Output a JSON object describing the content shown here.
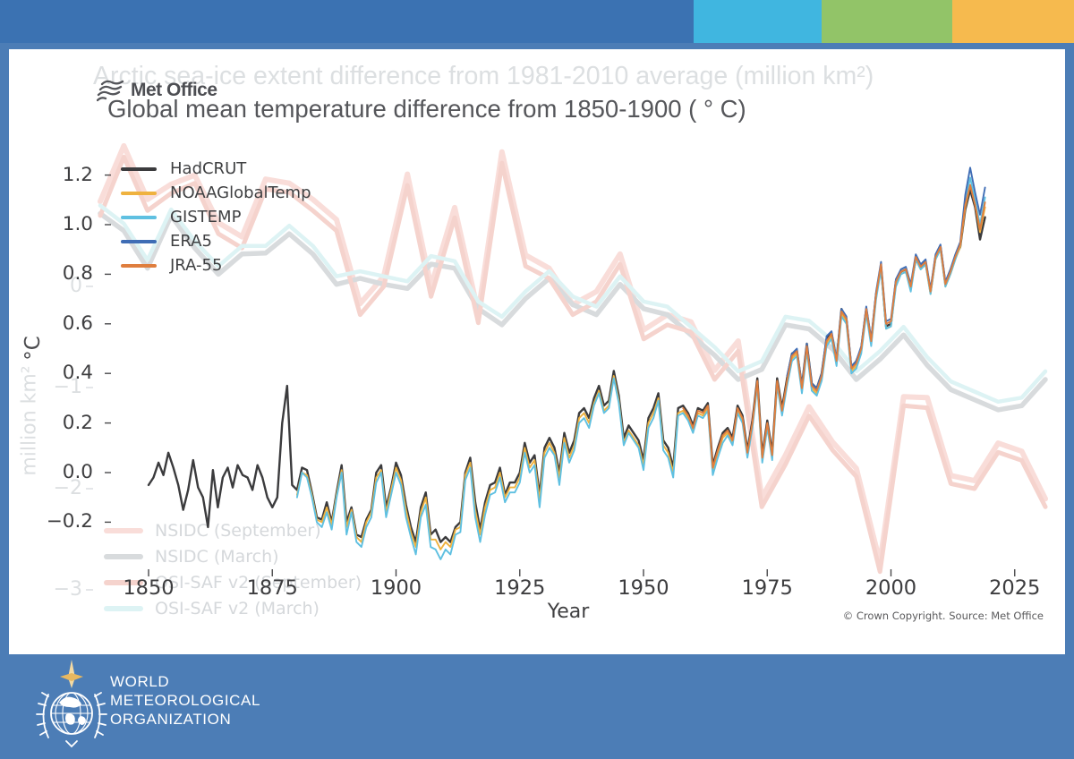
{
  "banner": {
    "segments": [
      "#3b72b2",
      "#40b6e0",
      "#92c468",
      "#f6ba4e"
    ]
  },
  "logo": {
    "met_office_label": "Met Office"
  },
  "titles": {
    "ghost": "Arctic sea-ice extent difference from 1981-2010 average (million km²)",
    "main": "Global mean temperature difference from 1850-1900 ( ° C)"
  },
  "axes": {
    "x_label": "Year",
    "x_ticks": [
      1850,
      1875,
      1900,
      1925,
      1950,
      1975,
      2000,
      2025
    ],
    "y_label": "°C",
    "y_ticks": [
      "1.2",
      "1.0",
      "0.8",
      "0.6",
      "0.4",
      "0.2",
      "0.0",
      "−0.2"
    ],
    "y_tick_values": [
      1.2,
      1.0,
      0.8,
      0.6,
      0.4,
      0.2,
      0.0,
      -0.2
    ],
    "ghost_y_label": "million km²",
    "ghost_y_ticks": [
      "0",
      "−1",
      "−2",
      "−3"
    ],
    "ghost_y_tick_values": [
      0,
      -1,
      -2,
      -3
    ]
  },
  "copyright": "© Crown Copyright. Source: Met Office",
  "footer": {
    "lines": [
      "WORLD",
      "METEOROLOGICAL",
      "ORGANIZATION"
    ]
  },
  "chart_data": {
    "type": "line",
    "title": "Global mean temperature difference from 1850-1900 ( ° C)",
    "ghost_title": "Arctic sea-ice extent difference from 1981-2010 average (million km²)",
    "xlabel": "Year",
    "ylabel": "°C",
    "x_range": [
      1850,
      2025
    ],
    "y_range": [
      -0.2,
      1.2
    ],
    "ghost_ylabel": "million km²",
    "ghost_y_range": [
      -3,
      1
    ],
    "grid": false,
    "legend_position": "upper left",
    "series": [
      {
        "name": "HadCRUT",
        "color": "#3b3b3d",
        "start": 1850,
        "values": [
          -0.05,
          -0.02,
          0.04,
          -0.01,
          0.08,
          0.02,
          -0.05,
          -0.15,
          -0.07,
          0.05,
          -0.06,
          -0.1,
          -0.22,
          0.01,
          -0.14,
          -0.02,
          0.02,
          -0.06,
          0.03,
          -0.01,
          -0.02,
          -0.07,
          0.03,
          -0.02,
          -0.1,
          -0.14,
          -0.1,
          0.2,
          0.35,
          -0.05,
          -0.07,
          0.02,
          0.01,
          -0.08,
          -0.18,
          -0.19,
          -0.12,
          -0.2,
          -0.08,
          0.03,
          -0.2,
          -0.14,
          -0.25,
          -0.26,
          -0.19,
          -0.15,
          0.0,
          0.03,
          -0.14,
          -0.06,
          0.04,
          -0.01,
          -0.13,
          -0.22,
          -0.28,
          -0.14,
          -0.08,
          -0.25,
          -0.23,
          -0.28,
          -0.26,
          -0.28,
          -0.22,
          -0.2,
          0.0,
          0.06,
          -0.12,
          -0.23,
          -0.12,
          -0.05,
          -0.04,
          0.02,
          -0.09,
          -0.04,
          -0.04,
          0.0,
          0.12,
          0.04,
          0.07,
          -0.09,
          0.1,
          0.14,
          0.1,
          0.0,
          0.16,
          0.08,
          0.13,
          0.24,
          0.26,
          0.22,
          0.3,
          0.35,
          0.27,
          0.29,
          0.41,
          0.31,
          0.14,
          0.19,
          0.16,
          0.13,
          0.05,
          0.22,
          0.26,
          0.32,
          0.13,
          0.1,
          0.02,
          0.26,
          0.27,
          0.24,
          0.19,
          0.26,
          0.25,
          0.28,
          0.03,
          0.1,
          0.16,
          0.18,
          0.14,
          0.27,
          0.23,
          0.09,
          0.21,
          0.38,
          0.07,
          0.21,
          0.08,
          0.38,
          0.26,
          0.38,
          0.48,
          0.49,
          0.35,
          0.52,
          0.36,
          0.34,
          0.4,
          0.54,
          0.56,
          0.45,
          0.66,
          0.62,
          0.42,
          0.45,
          0.5,
          0.66,
          0.53,
          0.72,
          0.83,
          0.59,
          0.6,
          0.77,
          0.81,
          0.82,
          0.75,
          0.86,
          0.83,
          0.85,
          0.73,
          0.87,
          0.91,
          0.76,
          0.81,
          0.87,
          0.91,
          1.06,
          1.14,
          1.07,
          0.94,
          1.03
        ]
      },
      {
        "name": "NOAAGlobalTemp",
        "color": "#efb23f",
        "start": 1880,
        "values": [
          -0.09,
          0.0,
          -0.01,
          -0.09,
          -0.19,
          -0.2,
          -0.14,
          -0.21,
          -0.09,
          0.01,
          -0.22,
          -0.15,
          -0.26,
          -0.28,
          -0.2,
          -0.16,
          -0.02,
          0.01,
          -0.16,
          -0.07,
          0.02,
          -0.03,
          -0.15,
          -0.24,
          -0.3,
          -0.16,
          -0.1,
          -0.27,
          -0.27,
          -0.31,
          -0.28,
          -0.3,
          -0.23,
          -0.22,
          -0.01,
          0.04,
          -0.15,
          -0.25,
          -0.14,
          -0.07,
          -0.06,
          0.0,
          -0.1,
          -0.06,
          -0.06,
          -0.02,
          0.1,
          0.02,
          0.05,
          -0.11,
          0.08,
          0.12,
          0.08,
          -0.02,
          0.14,
          0.06,
          0.11,
          0.22,
          0.24,
          0.2,
          0.28,
          0.33,
          0.25,
          0.27,
          0.39,
          0.29,
          0.12,
          0.17,
          0.14,
          0.11,
          0.03,
          0.2,
          0.24,
          0.3,
          0.11,
          0.08,
          0.0,
          0.24,
          0.25,
          0.22,
          0.17,
          0.24,
          0.23,
          0.26,
          0.01,
          0.08,
          0.14,
          0.16,
          0.12,
          0.25,
          0.21,
          0.07,
          0.19,
          0.36,
          0.05,
          0.19,
          0.06,
          0.36,
          0.24,
          0.36,
          0.46,
          0.48,
          0.33,
          0.5,
          0.34,
          0.32,
          0.38,
          0.52,
          0.55,
          0.44,
          0.64,
          0.61,
          0.41,
          0.43,
          0.49,
          0.65,
          0.52,
          0.71,
          0.83,
          0.58,
          0.59,
          0.76,
          0.8,
          0.81,
          0.74,
          0.86,
          0.82,
          0.84,
          0.72,
          0.86,
          0.9,
          0.75,
          0.8,
          0.86,
          0.91,
          1.07,
          1.16,
          1.08,
          0.97,
          1.07
        ]
      },
      {
        "name": "GISTEMP",
        "color": "#5fc0e1",
        "start": 1880,
        "values": [
          -0.1,
          0.0,
          -0.02,
          -0.1,
          -0.2,
          -0.22,
          -0.16,
          -0.23,
          -0.1,
          0.0,
          -0.25,
          -0.16,
          -0.28,
          -0.3,
          -0.22,
          -0.18,
          -0.04,
          0.0,
          -0.18,
          -0.09,
          0.0,
          -0.05,
          -0.18,
          -0.26,
          -0.33,
          -0.18,
          -0.13,
          -0.3,
          -0.31,
          -0.35,
          -0.31,
          -0.33,
          -0.25,
          -0.24,
          -0.03,
          0.02,
          -0.18,
          -0.28,
          -0.17,
          -0.09,
          -0.08,
          -0.02,
          -0.12,
          -0.08,
          -0.08,
          -0.04,
          0.08,
          0.0,
          0.03,
          -0.14,
          0.06,
          0.1,
          0.07,
          -0.05,
          0.12,
          0.04,
          0.09,
          0.2,
          0.22,
          0.18,
          0.27,
          0.32,
          0.24,
          0.26,
          0.38,
          0.28,
          0.11,
          0.16,
          0.13,
          0.1,
          0.01,
          0.18,
          0.22,
          0.29,
          0.09,
          0.06,
          -0.02,
          0.23,
          0.24,
          0.21,
          0.16,
          0.23,
          0.22,
          0.25,
          -0.01,
          0.06,
          0.12,
          0.15,
          0.11,
          0.24,
          0.2,
          0.06,
          0.18,
          0.35,
          0.04,
          0.18,
          0.05,
          0.35,
          0.23,
          0.35,
          0.45,
          0.47,
          0.32,
          0.49,
          0.33,
          0.31,
          0.37,
          0.51,
          0.54,
          0.43,
          0.63,
          0.6,
          0.4,
          0.42,
          0.48,
          0.64,
          0.51,
          0.7,
          0.82,
          0.58,
          0.59,
          0.75,
          0.8,
          0.81,
          0.73,
          0.86,
          0.82,
          0.84,
          0.72,
          0.86,
          0.9,
          0.75,
          0.8,
          0.86,
          0.92,
          1.09,
          1.19,
          1.1,
          1.0,
          1.11
        ]
      },
      {
        "name": "ERA5",
        "color": "#3f6db5",
        "start": 1979,
        "values": [
          0.39,
          0.48,
          0.5,
          0.35,
          0.52,
          0.36,
          0.34,
          0.4,
          0.55,
          0.57,
          0.46,
          0.66,
          0.63,
          0.43,
          0.45,
          0.51,
          0.67,
          0.54,
          0.73,
          0.85,
          0.61,
          0.62,
          0.78,
          0.82,
          0.83,
          0.76,
          0.88,
          0.84,
          0.86,
          0.74,
          0.88,
          0.92,
          0.77,
          0.82,
          0.88,
          0.93,
          1.12,
          1.23,
          1.13,
          1.04,
          1.15
        ]
      },
      {
        "name": "JRA-55",
        "color": "#df7e3e",
        "start": 1958,
        "values": [
          0.26,
          0.23,
          0.18,
          0.25,
          0.24,
          0.27,
          0.02,
          0.09,
          0.15,
          0.17,
          0.13,
          0.26,
          0.22,
          0.08,
          0.2,
          0.37,
          0.06,
          0.2,
          0.07,
          0.37,
          0.25,
          0.37,
          0.47,
          0.49,
          0.34,
          0.51,
          0.35,
          0.33,
          0.39,
          0.53,
          0.56,
          0.45,
          0.65,
          0.62,
          0.42,
          0.44,
          0.5,
          0.66,
          0.53,
          0.72,
          0.84,
          0.6,
          0.61,
          0.77,
          0.81,
          0.82,
          0.75,
          0.87,
          0.83,
          0.85,
          0.73,
          0.87,
          0.91,
          0.76,
          0.81,
          0.87,
          0.92,
          1.08,
          1.16,
          1.08,
          0.98,
          1.09
        ]
      }
    ],
    "ghost_series": [
      {
        "name": "NSIDC (September)",
        "color": "#f9ddd9",
        "start": 1979,
        "values": [
          0.84,
          1.39,
          0.86,
          1.01,
          1.1,
          0.63,
          0.49,
          1.06,
          1.02,
          0.86,
          0.66,
          -0.17,
          0.1,
          1.11,
          0.0,
          0.78,
          -0.26,
          1.33,
          0.31,
          0.18,
          -0.18,
          -0.05,
          0.32,
          -0.43,
          -0.28,
          -0.35,
          -0.83,
          -0.54,
          -2.09,
          -1.67,
          -1.19,
          -1.54,
          -1.8,
          -2.73,
          -1.09,
          -1.1,
          -1.87,
          -1.92,
          -1.55,
          -1.63,
          -2.1
        ]
      },
      {
        "name": "NSIDC (March)",
        "color": "#d8dbdd",
        "start": 1979,
        "values": [
          0.72,
          0.55,
          0.18,
          0.7,
          0.38,
          0.12,
          0.32,
          0.33,
          0.52,
          0.32,
          0.02,
          0.08,
          0.02,
          -0.02,
          0.22,
          0.18,
          -0.22,
          -0.38,
          -0.12,
          0.08,
          -0.18,
          -0.28,
          0.02,
          -0.22,
          -0.28,
          -0.48,
          -0.68,
          -0.92,
          -0.82,
          -0.38,
          -0.42,
          -0.62,
          -0.92,
          -0.72,
          -0.48,
          -0.78,
          -1.02,
          -1.12,
          -1.22,
          -1.18,
          -0.92
        ]
      },
      {
        "name": "OSI-SAF v2 (September)",
        "color": "#f5d3cd",
        "start": 1979,
        "values": [
          0.7,
          1.28,
          0.75,
          0.92,
          1.02,
          0.52,
          0.38,
          0.96,
          0.93,
          0.75,
          0.55,
          -0.28,
          0.0,
          1.0,
          -0.1,
          0.68,
          -0.36,
          1.22,
          0.2,
          0.08,
          -0.28,
          -0.15,
          0.22,
          -0.52,
          -0.38,
          -0.45,
          -0.92,
          -0.64,
          -2.18,
          -1.76,
          -1.28,
          -1.62,
          -1.88,
          -2.82,
          -1.18,
          -1.2,
          -1.95,
          -2.0,
          -1.64,
          -1.72,
          -2.18
        ]
      },
      {
        "name": "OSI-SAF v2 (March)",
        "color": "#ddf3f4",
        "start": 1979,
        "values": [
          0.8,
          0.62,
          0.26,
          0.76,
          0.45,
          0.2,
          0.4,
          0.4,
          0.6,
          0.4,
          0.1,
          0.15,
          0.1,
          0.05,
          0.3,
          0.25,
          -0.15,
          -0.3,
          -0.05,
          0.15,
          -0.1,
          -0.2,
          0.1,
          -0.15,
          -0.2,
          -0.4,
          -0.6,
          -0.84,
          -0.74,
          -0.3,
          -0.34,
          -0.54,
          -0.84,
          -0.64,
          -0.4,
          -0.7,
          -0.94,
          -1.04,
          -1.14,
          -1.1,
          -0.84
        ]
      }
    ]
  }
}
